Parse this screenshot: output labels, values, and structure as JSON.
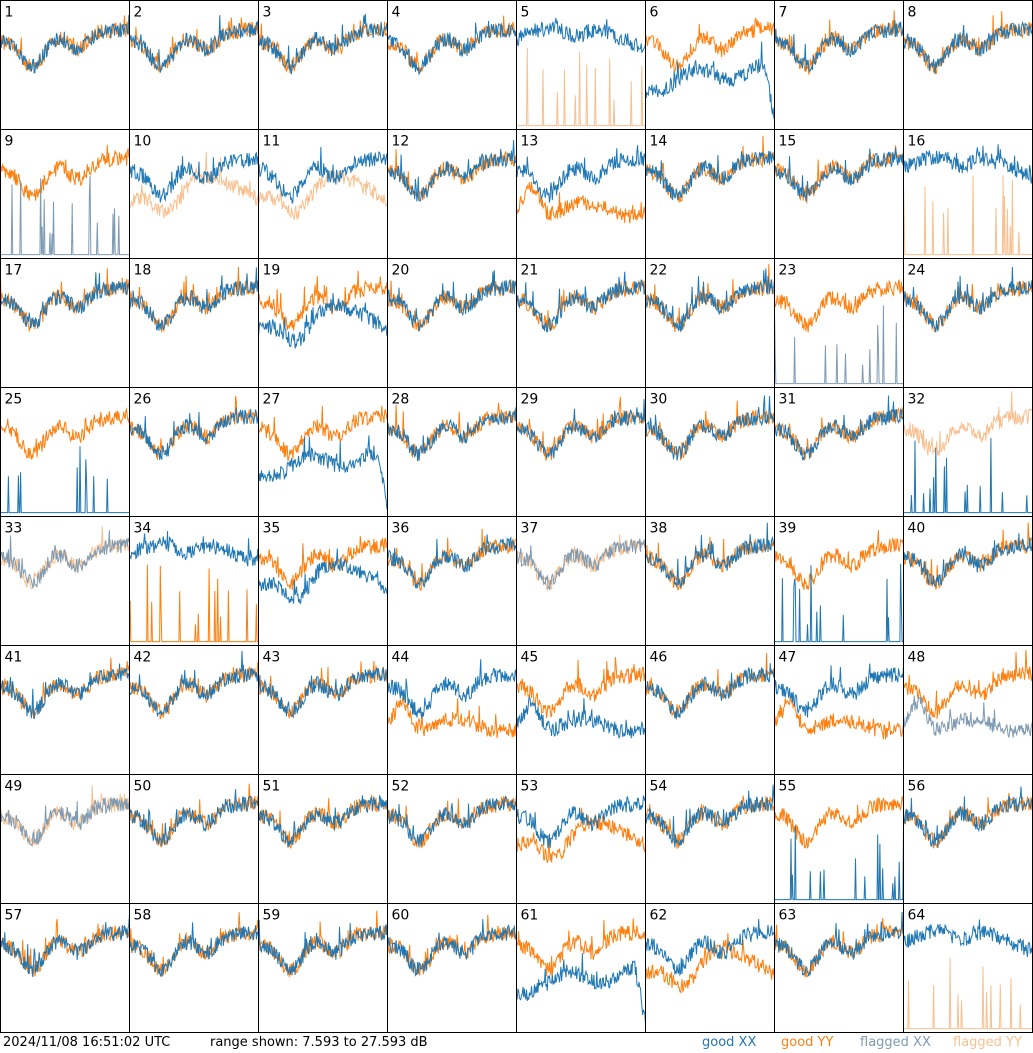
{
  "footer": {
    "timestamp": "2024/11/08 16:51:02 UTC",
    "range_text": "range shown: 7.593 to 27.593 dB"
  },
  "legend": {
    "good_xx": "good XX",
    "good_yy": "good YY",
    "flagged_xx": "flagged XX",
    "flagged_yy": "flagged YY"
  },
  "colors": {
    "good_xx": "#1f77b4",
    "good_yy": "#ff7f0e",
    "flagged_xx": "#7f9bb3",
    "flagged_yy": "#f9c08f"
  },
  "chart_data": {
    "type": "line",
    "layout": "8x8 grid of small multiples",
    "ylim": [
      7.593,
      27.593
    ],
    "yunit": "dB",
    "panels": [
      {
        "label": "1",
        "xx": "good",
        "yy": "good",
        "xx_shape": "normal",
        "yy_shape": "normal"
      },
      {
        "label": "2",
        "xx": "good",
        "yy": "good",
        "xx_shape": "normal",
        "yy_shape": "normal"
      },
      {
        "label": "3",
        "xx": "good",
        "yy": "good",
        "xx_shape": "normal",
        "yy_shape": "normal"
      },
      {
        "label": "4",
        "xx": "good",
        "yy": "good",
        "xx_shape": "normal",
        "yy_shape": "normal"
      },
      {
        "label": "5",
        "xx": "good",
        "yy": "flagged",
        "xx_shape": "high",
        "yy_shape": "spikes"
      },
      {
        "label": "6",
        "xx": "good",
        "yy": "good",
        "xx_shape": "decay",
        "yy_shape": "normal"
      },
      {
        "label": "7",
        "xx": "good",
        "yy": "good",
        "xx_shape": "normal",
        "yy_shape": "normal"
      },
      {
        "label": "8",
        "xx": "good",
        "yy": "good",
        "xx_shape": "normal",
        "yy_shape": "normal"
      },
      {
        "label": "9",
        "xx": "flagged",
        "yy": "good",
        "xx_shape": "spikes",
        "yy_shape": "normal"
      },
      {
        "label": "10",
        "xx": "good",
        "yy": "flagged",
        "xx_shape": "normal",
        "yy_shape": "deep"
      },
      {
        "label": "11",
        "xx": "good",
        "yy": "flagged",
        "xx_shape": "normal",
        "yy_shape": "deep"
      },
      {
        "label": "12",
        "xx": "good",
        "yy": "good",
        "xx_shape": "normal",
        "yy_shape": "normal"
      },
      {
        "label": "13",
        "xx": "good",
        "yy": "good",
        "xx_shape": "normal",
        "yy_shape": "flat"
      },
      {
        "label": "14",
        "xx": "good",
        "yy": "good",
        "xx_shape": "normal",
        "yy_shape": "normal"
      },
      {
        "label": "15",
        "xx": "good",
        "yy": "good",
        "xx_shape": "normal",
        "yy_shape": "normal"
      },
      {
        "label": "16",
        "xx": "good",
        "yy": "flagged",
        "xx_shape": "high",
        "yy_shape": "spikes"
      },
      {
        "label": "17",
        "xx": "good",
        "yy": "good",
        "xx_shape": "normal",
        "yy_shape": "normal"
      },
      {
        "label": "18",
        "xx": "good",
        "yy": "good",
        "xx_shape": "normal",
        "yy_shape": "normal"
      },
      {
        "label": "19",
        "xx": "good",
        "yy": "good",
        "xx_shape": "deep",
        "yy_shape": "normal"
      },
      {
        "label": "20",
        "xx": "good",
        "yy": "good",
        "xx_shape": "normal",
        "yy_shape": "normal"
      },
      {
        "label": "21",
        "xx": "good",
        "yy": "good",
        "xx_shape": "normal",
        "yy_shape": "normal"
      },
      {
        "label": "22",
        "xx": "good",
        "yy": "good",
        "xx_shape": "normal",
        "yy_shape": "normal"
      },
      {
        "label": "23",
        "xx": "flagged",
        "yy": "good",
        "xx_shape": "spikes",
        "yy_shape": "normal"
      },
      {
        "label": "24",
        "xx": "good",
        "yy": "good",
        "xx_shape": "normal",
        "yy_shape": "normal"
      },
      {
        "label": "25",
        "xx": "good",
        "yy": "good",
        "xx_shape": "spikes",
        "yy_shape": "normal"
      },
      {
        "label": "26",
        "xx": "good",
        "yy": "good",
        "xx_shape": "normal",
        "yy_shape": "normal"
      },
      {
        "label": "27",
        "xx": "good",
        "yy": "good",
        "xx_shape": "decay",
        "yy_shape": "normal"
      },
      {
        "label": "28",
        "xx": "good",
        "yy": "good",
        "xx_shape": "normal",
        "yy_shape": "normal"
      },
      {
        "label": "29",
        "xx": "good",
        "yy": "good",
        "xx_shape": "normal",
        "yy_shape": "normal"
      },
      {
        "label": "30",
        "xx": "good",
        "yy": "good",
        "xx_shape": "normal",
        "yy_shape": "normal"
      },
      {
        "label": "31",
        "xx": "good",
        "yy": "good",
        "xx_shape": "normal",
        "yy_shape": "normal"
      },
      {
        "label": "32",
        "xx": "good",
        "yy": "flagged",
        "xx_shape": "spikes",
        "yy_shape": "normal"
      },
      {
        "label": "33",
        "xx": "flagged",
        "yy": "flagged",
        "xx_shape": "normal",
        "yy_shape": "normal"
      },
      {
        "label": "34",
        "xx": "good",
        "yy": "good",
        "xx_shape": "high",
        "yy_shape": "spikes"
      },
      {
        "label": "35",
        "xx": "good",
        "yy": "good",
        "xx_shape": "deep",
        "yy_shape": "normal"
      },
      {
        "label": "36",
        "xx": "good",
        "yy": "good",
        "xx_shape": "normal",
        "yy_shape": "normal"
      },
      {
        "label": "37",
        "xx": "flagged",
        "yy": "flagged",
        "xx_shape": "normal",
        "yy_shape": "normal"
      },
      {
        "label": "38",
        "xx": "good",
        "yy": "good",
        "xx_shape": "normal",
        "yy_shape": "normal"
      },
      {
        "label": "39",
        "xx": "good",
        "yy": "good",
        "xx_shape": "spikes",
        "yy_shape": "normal"
      },
      {
        "label": "40",
        "xx": "good",
        "yy": "good",
        "xx_shape": "normal",
        "yy_shape": "normal"
      },
      {
        "label": "41",
        "xx": "good",
        "yy": "good",
        "xx_shape": "normal",
        "yy_shape": "normal"
      },
      {
        "label": "42",
        "xx": "good",
        "yy": "good",
        "xx_shape": "normal",
        "yy_shape": "normal"
      },
      {
        "label": "43",
        "xx": "good",
        "yy": "good",
        "xx_shape": "normal",
        "yy_shape": "normal"
      },
      {
        "label": "44",
        "xx": "good",
        "yy": "good",
        "xx_shape": "normal",
        "yy_shape": "flat"
      },
      {
        "label": "45",
        "xx": "good",
        "yy": "good",
        "xx_shape": "flat",
        "yy_shape": "normal"
      },
      {
        "label": "46",
        "xx": "good",
        "yy": "good",
        "xx_shape": "normal",
        "yy_shape": "normal"
      },
      {
        "label": "47",
        "xx": "good",
        "yy": "good",
        "xx_shape": "normal",
        "yy_shape": "flat"
      },
      {
        "label": "48",
        "xx": "flagged",
        "yy": "good",
        "xx_shape": "flat",
        "yy_shape": "normal"
      },
      {
        "label": "49",
        "xx": "flagged",
        "yy": "flagged",
        "xx_shape": "normal",
        "yy_shape": "normal"
      },
      {
        "label": "50",
        "xx": "good",
        "yy": "good",
        "xx_shape": "normal",
        "yy_shape": "normal"
      },
      {
        "label": "51",
        "xx": "good",
        "yy": "good",
        "xx_shape": "normal",
        "yy_shape": "normal"
      },
      {
        "label": "52",
        "xx": "good",
        "yy": "good",
        "xx_shape": "normal",
        "yy_shape": "normal"
      },
      {
        "label": "53",
        "xx": "good",
        "yy": "good",
        "xx_shape": "normal",
        "yy_shape": "deep"
      },
      {
        "label": "54",
        "xx": "good",
        "yy": "good",
        "xx_shape": "normal",
        "yy_shape": "normal"
      },
      {
        "label": "55",
        "xx": "good",
        "yy": "good",
        "xx_shape": "spikes",
        "yy_shape": "normal"
      },
      {
        "label": "56",
        "xx": "good",
        "yy": "good",
        "xx_shape": "normal",
        "yy_shape": "normal"
      },
      {
        "label": "57",
        "xx": "good",
        "yy": "good",
        "xx_shape": "normal",
        "yy_shape": "normal"
      },
      {
        "label": "58",
        "xx": "good",
        "yy": "good",
        "xx_shape": "normal",
        "yy_shape": "normal"
      },
      {
        "label": "59",
        "xx": "good",
        "yy": "good",
        "xx_shape": "normal",
        "yy_shape": "normal"
      },
      {
        "label": "60",
        "xx": "good",
        "yy": "good",
        "xx_shape": "normal",
        "yy_shape": "normal"
      },
      {
        "label": "61",
        "xx": "good",
        "yy": "good",
        "xx_shape": "decay",
        "yy_shape": "normal"
      },
      {
        "label": "62",
        "xx": "good",
        "yy": "good",
        "xx_shape": "normal",
        "yy_shape": "deep"
      },
      {
        "label": "63",
        "xx": "good",
        "yy": "good",
        "xx_shape": "normal",
        "yy_shape": "normal"
      },
      {
        "label": "64",
        "xx": "good",
        "yy": "flagged",
        "xx_shape": "high",
        "yy_shape": "spikes"
      }
    ]
  }
}
